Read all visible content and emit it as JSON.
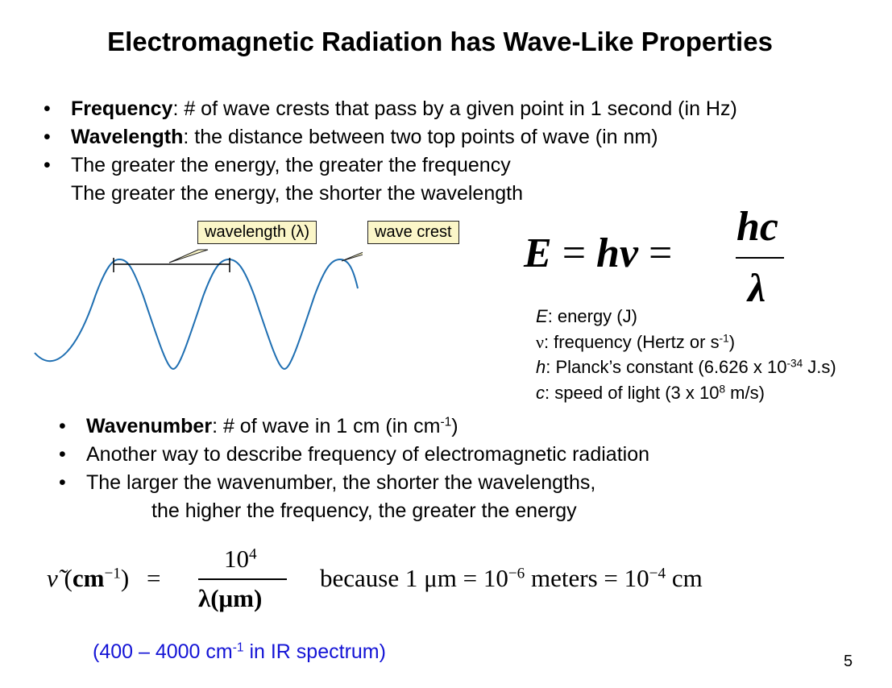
{
  "title": "Electromagnetic Radiation has Wave-Like Properties",
  "bullets_top": [
    {
      "term": "Frequency",
      "text": ": # of wave crests that pass by a given point in 1 second (in Hz)"
    },
    {
      "term": "Wavelength",
      "text": ": the distance between two top points of wave (in nm)"
    },
    {
      "term": "",
      "text": "The greater the energy, the greater the frequency",
      "continuation": "The greater the energy, the shorter the wavelength"
    }
  ],
  "diagram": {
    "callout_wavelength": "wavelength (λ)",
    "callout_crest": "wave crest",
    "stroke_color": "#1f6fb2",
    "callout_fill": "#fbf6c8"
  },
  "equation": {
    "lhs": "E",
    "equals": "=",
    "middle": "hν",
    "numerator": "hc",
    "denominator": "λ"
  },
  "definitions": [
    {
      "sym": "E",
      "text": ": energy (J)"
    },
    {
      "sym": "ν",
      "text": ": frequency (Hertz or s",
      "sup": "-1",
      "tail": ")"
    },
    {
      "sym": "h",
      "text": ": Planck’s constant (6.626 x 10",
      "sup": "-34",
      "tail": " J.s)"
    },
    {
      "sym": "c",
      "text": ": speed of light (3 x 10",
      "sup": "8",
      "tail": " m/s)"
    }
  ],
  "bullets_bottom": [
    {
      "term": "Wavenumber",
      "text": ": # of wave in 1 cm (in cm",
      "sup": "-1",
      "tail": ")"
    },
    {
      "term": "",
      "text": "Another way to describe frequency of electromagnetic radiation"
    },
    {
      "term": "",
      "text": "The larger the wavenumber, the shorter the wavelengths,",
      "continuation": "the higher the frequency, the greater the energy"
    }
  ],
  "wavenumber_formula": {
    "lhs_symbol": "ν̃",
    "lhs_unit": "cm",
    "lhs_unit_sup": "−1",
    "equals": "=",
    "numerator": "10",
    "numerator_sup": "4",
    "denominator": "λ(μm)",
    "because_text": "because 1 μm = 10",
    "because_sup1": "−6",
    "because_mid": " meters = 10",
    "because_sup2": "−4",
    "because_tail": " cm"
  },
  "ir_note": "(400 – 4000 cm",
  "ir_note_sup": "-1",
  "ir_note_tail": " in IR spectrum)",
  "ir_color": "#1414d6",
  "page_number": "5"
}
